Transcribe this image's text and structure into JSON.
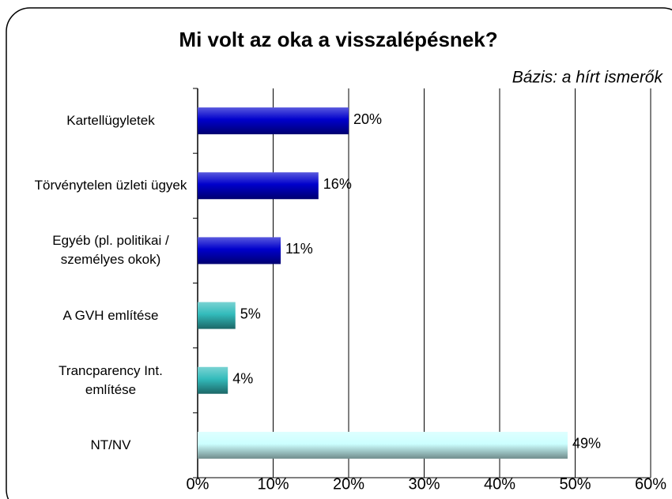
{
  "chart_data": {
    "type": "bar",
    "orientation": "horizontal",
    "title": "Mi volt az oka a visszalépésnek?",
    "subtitle": "Bázis: a hírt ismerők",
    "categories": [
      "Kartellügyletek",
      "Törvénytelen üzleti ügyek",
      "Egyéb (pl. politikai / személyes okok)",
      "A GVH említése",
      "Trancparency Int. említése",
      "NT/NV"
    ],
    "values": [
      20,
      16,
      11,
      5,
      4,
      49
    ],
    "value_labels": [
      "20%",
      "16%",
      "11%",
      "5%",
      "4%",
      "49%"
    ],
    "colors": [
      "#0000cc",
      "#0000cc",
      "#0000cc",
      "#33bbbb",
      "#33bbbb",
      "#ccffff"
    ],
    "xlim": [
      0,
      60
    ],
    "xticks": [
      {
        "value": 0,
        "label": "0%"
      },
      {
        "value": 10,
        "label": "10%"
      },
      {
        "value": 20,
        "label": "20%"
      },
      {
        "value": 30,
        "label": "30%"
      },
      {
        "value": 40,
        "label": "40%"
      },
      {
        "value": 50,
        "label": "50%"
      },
      {
        "value": 60,
        "label": "60%"
      }
    ],
    "grid": true
  }
}
